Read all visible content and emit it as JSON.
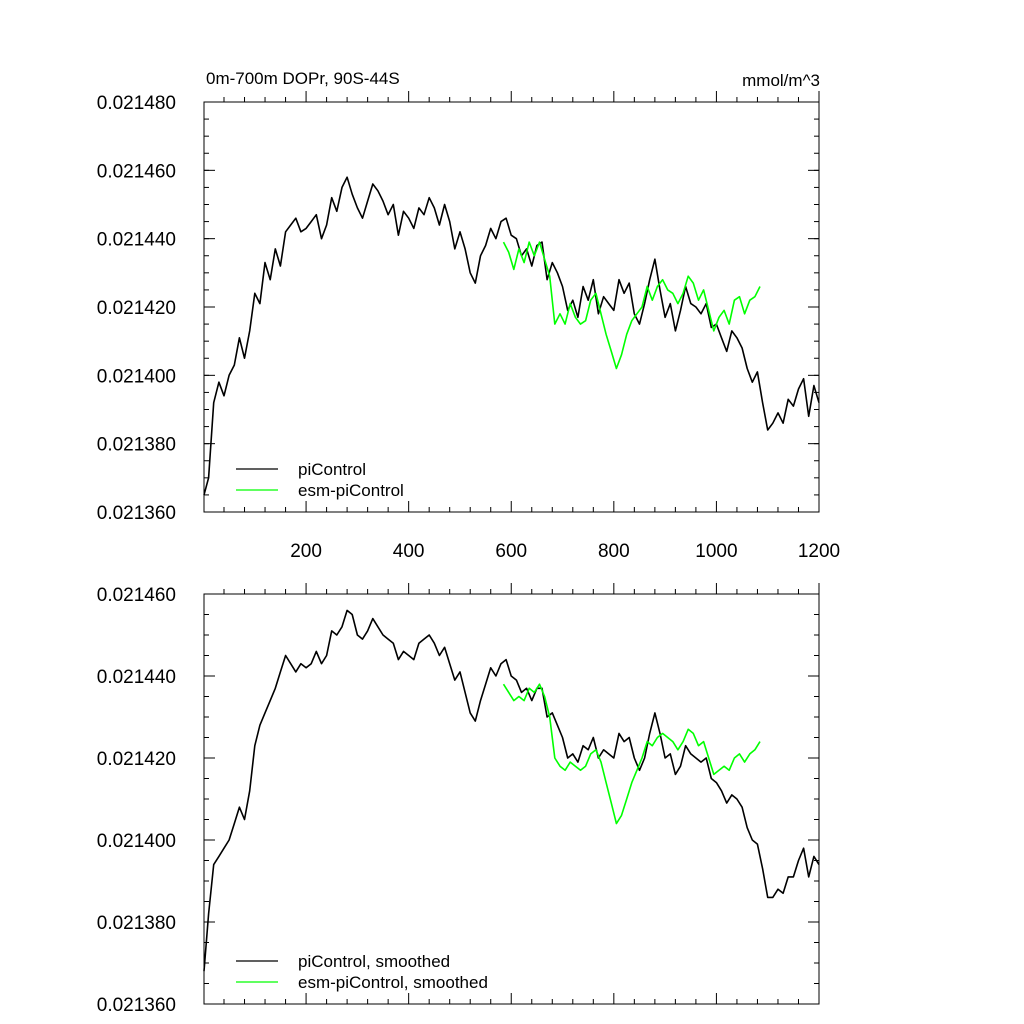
{
  "chart_data": [
    {
      "type": "line",
      "title": "0m-700m DOPr, 90S-44S",
      "units": "mmol/m^3",
      "xlim": [
        1,
        1200
      ],
      "ylim": [
        0.02136,
        0.02148
      ],
      "x_ticks": [
        200,
        400,
        600,
        800,
        1000,
        1200
      ],
      "y_ticks": [
        "0.021360",
        "0.021380",
        "0.021400",
        "0.021420",
        "0.021440",
        "0.021460",
        "0.021480"
      ],
      "y_tick_values": [
        0.02136,
        0.02138,
        0.0214,
        0.02142,
        0.02144,
        0.02146,
        0.02148
      ],
      "legend": [
        "piControl",
        "esm-piControl"
      ],
      "legend_position": "bottom-left",
      "series": [
        {
          "name": "piControl",
          "color": "#000000",
          "x": [
            1,
            10,
            20,
            30,
            40,
            50,
            60,
            70,
            80,
            90,
            100,
            110,
            120,
            130,
            140,
            150,
            160,
            170,
            180,
            190,
            200,
            210,
            220,
            230,
            240,
            250,
            260,
            270,
            280,
            290,
            300,
            310,
            320,
            330,
            340,
            350,
            360,
            370,
            380,
            390,
            400,
            410,
            420,
            430,
            440,
            450,
            460,
            470,
            480,
            490,
            500,
            510,
            520,
            530,
            540,
            550,
            560,
            570,
            580,
            590,
            600,
            610,
            620,
            630,
            640,
            650,
            660,
            670,
            680,
            690,
            700,
            710,
            720,
            730,
            740,
            750,
            760,
            770,
            780,
            790,
            800,
            810,
            820,
            830,
            840,
            850,
            860,
            870,
            880,
            890,
            900,
            910,
            920,
            930,
            940,
            950,
            960,
            970,
            980,
            990,
            1000,
            1010,
            1020,
            1030,
            1040,
            1050,
            1060,
            1070,
            1080,
            1090,
            1100,
            1110,
            1120,
            1130,
            1140,
            1150,
            1160,
            1170,
            1180,
            1190,
            1200
          ],
          "values": [
            0.021365,
            0.02137,
            0.021392,
            0.021398,
            0.021394,
            0.0214,
            0.021403,
            0.021411,
            0.021405,
            0.021413,
            0.021424,
            0.021421,
            0.021433,
            0.021428,
            0.021437,
            0.021432,
            0.021442,
            0.021444,
            0.021446,
            0.021442,
            0.021443,
            0.021445,
            0.021447,
            0.02144,
            0.021444,
            0.021452,
            0.021448,
            0.021455,
            0.021458,
            0.021453,
            0.021449,
            0.021446,
            0.021451,
            0.021456,
            0.021454,
            0.021451,
            0.021447,
            0.02145,
            0.021441,
            0.021448,
            0.021446,
            0.021443,
            0.021449,
            0.021447,
            0.021452,
            0.021449,
            0.021444,
            0.02145,
            0.021445,
            0.021437,
            0.021442,
            0.021437,
            0.02143,
            0.021427,
            0.021435,
            0.021438,
            0.021443,
            0.02144,
            0.021445,
            0.021446,
            0.021441,
            0.02144,
            0.021435,
            0.021437,
            0.021432,
            0.021438,
            0.021439,
            0.021428,
            0.021433,
            0.02143,
            0.021426,
            0.021419,
            0.021422,
            0.021417,
            0.021426,
            0.021422,
            0.021428,
            0.021418,
            0.021423,
            0.021421,
            0.021419,
            0.021428,
            0.021424,
            0.021427,
            0.021418,
            0.021415,
            0.021421,
            0.021428,
            0.021434,
            0.021425,
            0.021417,
            0.021421,
            0.021413,
            0.021419,
            0.021426,
            0.021421,
            0.02142,
            0.021418,
            0.021421,
            0.021414,
            0.021415,
            0.021411,
            0.021407,
            0.021413,
            0.021411,
            0.021408,
            0.021402,
            0.021398,
            0.021401,
            0.021392,
            0.021384,
            0.021386,
            0.021389,
            0.021386,
            0.021393,
            0.021391,
            0.021396,
            0.021399,
            0.021388,
            0.021397,
            0.021392
          ]
        },
        {
          "name": "esm-piControl",
          "color": "#00ff00",
          "x": [
            585,
            595,
            605,
            615,
            625,
            635,
            645,
            655,
            665,
            675,
            685,
            695,
            705,
            715,
            725,
            735,
            745,
            755,
            765,
            775,
            785,
            795,
            805,
            815,
            825,
            835,
            845,
            855,
            865,
            875,
            885,
            895,
            905,
            915,
            925,
            935,
            945,
            955,
            965,
            975,
            985,
            995,
            1005,
            1015,
            1025,
            1035,
            1045,
            1055,
            1065,
            1075,
            1085
          ],
          "values": [
            0.021439,
            0.021436,
            0.021431,
            0.021437,
            0.021433,
            0.021439,
            0.021435,
            0.021439,
            0.021434,
            0.021429,
            0.021415,
            0.021418,
            0.021415,
            0.021421,
            0.021417,
            0.021415,
            0.021416,
            0.021422,
            0.021424,
            0.021418,
            0.021412,
            0.021407,
            0.021402,
            0.021406,
            0.021412,
            0.021416,
            0.021418,
            0.02142,
            0.021426,
            0.021422,
            0.021426,
            0.021428,
            0.021425,
            0.021424,
            0.021421,
            0.021424,
            0.021429,
            0.021427,
            0.021422,
            0.021425,
            0.021419,
            0.021413,
            0.021417,
            0.021419,
            0.021415,
            0.021422,
            0.021423,
            0.021418,
            0.021422,
            0.021423,
            0.021426
          ]
        }
      ]
    },
    {
      "type": "line",
      "xlim": [
        1,
        1200
      ],
      "ylim": [
        0.02136,
        0.02146
      ],
      "y_ticks": [
        "0.021360",
        "0.021380",
        "0.021400",
        "0.021420",
        "0.021440",
        "0.021460"
      ],
      "y_tick_values": [
        0.02136,
        0.02138,
        0.0214,
        0.02142,
        0.02144,
        0.02146
      ],
      "legend": [
        "piControl, smoothed",
        "esm-piControl, smoothed"
      ],
      "legend_position": "bottom-left",
      "series": [
        {
          "name": "piControl, smoothed",
          "color": "#000000",
          "x": [
            1,
            10,
            20,
            30,
            40,
            50,
            60,
            70,
            80,
            90,
            100,
            110,
            120,
            130,
            140,
            150,
            160,
            170,
            180,
            190,
            200,
            210,
            220,
            230,
            240,
            250,
            260,
            270,
            280,
            290,
            300,
            310,
            320,
            330,
            340,
            350,
            360,
            370,
            380,
            390,
            400,
            410,
            420,
            430,
            440,
            450,
            460,
            470,
            480,
            490,
            500,
            510,
            520,
            530,
            540,
            550,
            560,
            570,
            580,
            590,
            600,
            610,
            620,
            630,
            640,
            650,
            660,
            670,
            680,
            690,
            700,
            710,
            720,
            730,
            740,
            750,
            760,
            770,
            780,
            790,
            800,
            810,
            820,
            830,
            840,
            850,
            860,
            870,
            880,
            890,
            900,
            910,
            920,
            930,
            940,
            950,
            960,
            970,
            980,
            990,
            1000,
            1010,
            1020,
            1030,
            1040,
            1050,
            1060,
            1070,
            1080,
            1090,
            1100,
            1110,
            1120,
            1130,
            1140,
            1150,
            1160,
            1170,
            1180,
            1190,
            1200
          ],
          "values": [
            0.021368,
            0.021382,
            0.021394,
            0.021396,
            0.021398,
            0.0214,
            0.021404,
            0.021408,
            0.021405,
            0.021412,
            0.021423,
            0.021428,
            0.021431,
            0.021434,
            0.021437,
            0.021441,
            0.021445,
            0.021443,
            0.021441,
            0.021443,
            0.021442,
            0.021443,
            0.021446,
            0.021443,
            0.021445,
            0.021451,
            0.02145,
            0.021452,
            0.021456,
            0.021455,
            0.02145,
            0.021449,
            0.021451,
            0.021454,
            0.021452,
            0.02145,
            0.021449,
            0.021448,
            0.021444,
            0.021446,
            0.021445,
            0.021444,
            0.021448,
            0.021449,
            0.02145,
            0.021448,
            0.021445,
            0.021447,
            0.021443,
            0.021439,
            0.021441,
            0.021436,
            0.021431,
            0.021429,
            0.021434,
            0.021438,
            0.021442,
            0.02144,
            0.021443,
            0.021444,
            0.02144,
            0.021439,
            0.021436,
            0.021437,
            0.021434,
            0.021437,
            0.021437,
            0.02143,
            0.021431,
            0.021428,
            0.021425,
            0.02142,
            0.021421,
            0.021419,
            0.021423,
            0.021422,
            0.021425,
            0.02142,
            0.021422,
            0.021421,
            0.02142,
            0.021426,
            0.021424,
            0.021425,
            0.02142,
            0.021417,
            0.02142,
            0.021426,
            0.021431,
            0.021426,
            0.02142,
            0.021421,
            0.021416,
            0.021418,
            0.021423,
            0.021421,
            0.02142,
            0.021419,
            0.02142,
            0.021415,
            0.021414,
            0.021412,
            0.021409,
            0.021411,
            0.02141,
            0.021408,
            0.021403,
            0.0214,
            0.021399,
            0.021393,
            0.021386,
            0.021386,
            0.021388,
            0.021387,
            0.021391,
            0.021391,
            0.021395,
            0.021398,
            0.021391,
            0.021396,
            0.021394
          ]
        },
        {
          "name": "esm-piControl, smoothed",
          "color": "#00ff00",
          "x": [
            585,
            595,
            605,
            615,
            625,
            635,
            645,
            655,
            665,
            675,
            685,
            695,
            705,
            715,
            725,
            735,
            745,
            755,
            765,
            775,
            785,
            795,
            805,
            815,
            825,
            835,
            845,
            855,
            865,
            875,
            885,
            895,
            905,
            915,
            925,
            935,
            945,
            955,
            965,
            975,
            985,
            995,
            1005,
            1015,
            1025,
            1035,
            1045,
            1055,
            1065,
            1075,
            1085
          ],
          "values": [
            0.021438,
            0.021436,
            0.021434,
            0.021435,
            0.021434,
            0.021437,
            0.021436,
            0.021438,
            0.021435,
            0.02143,
            0.02142,
            0.021418,
            0.021417,
            0.021419,
            0.021418,
            0.021417,
            0.021418,
            0.021421,
            0.021422,
            0.021419,
            0.021414,
            0.021409,
            0.021404,
            0.021406,
            0.02141,
            0.021414,
            0.021417,
            0.02142,
            0.021424,
            0.021423,
            0.021425,
            0.021426,
            0.021425,
            0.021424,
            0.021422,
            0.021424,
            0.021427,
            0.021426,
            0.021423,
            0.021424,
            0.02142,
            0.021416,
            0.021417,
            0.021418,
            0.021417,
            0.02142,
            0.021421,
            0.021419,
            0.021421,
            0.021422,
            0.021424
          ]
        }
      ]
    }
  ]
}
